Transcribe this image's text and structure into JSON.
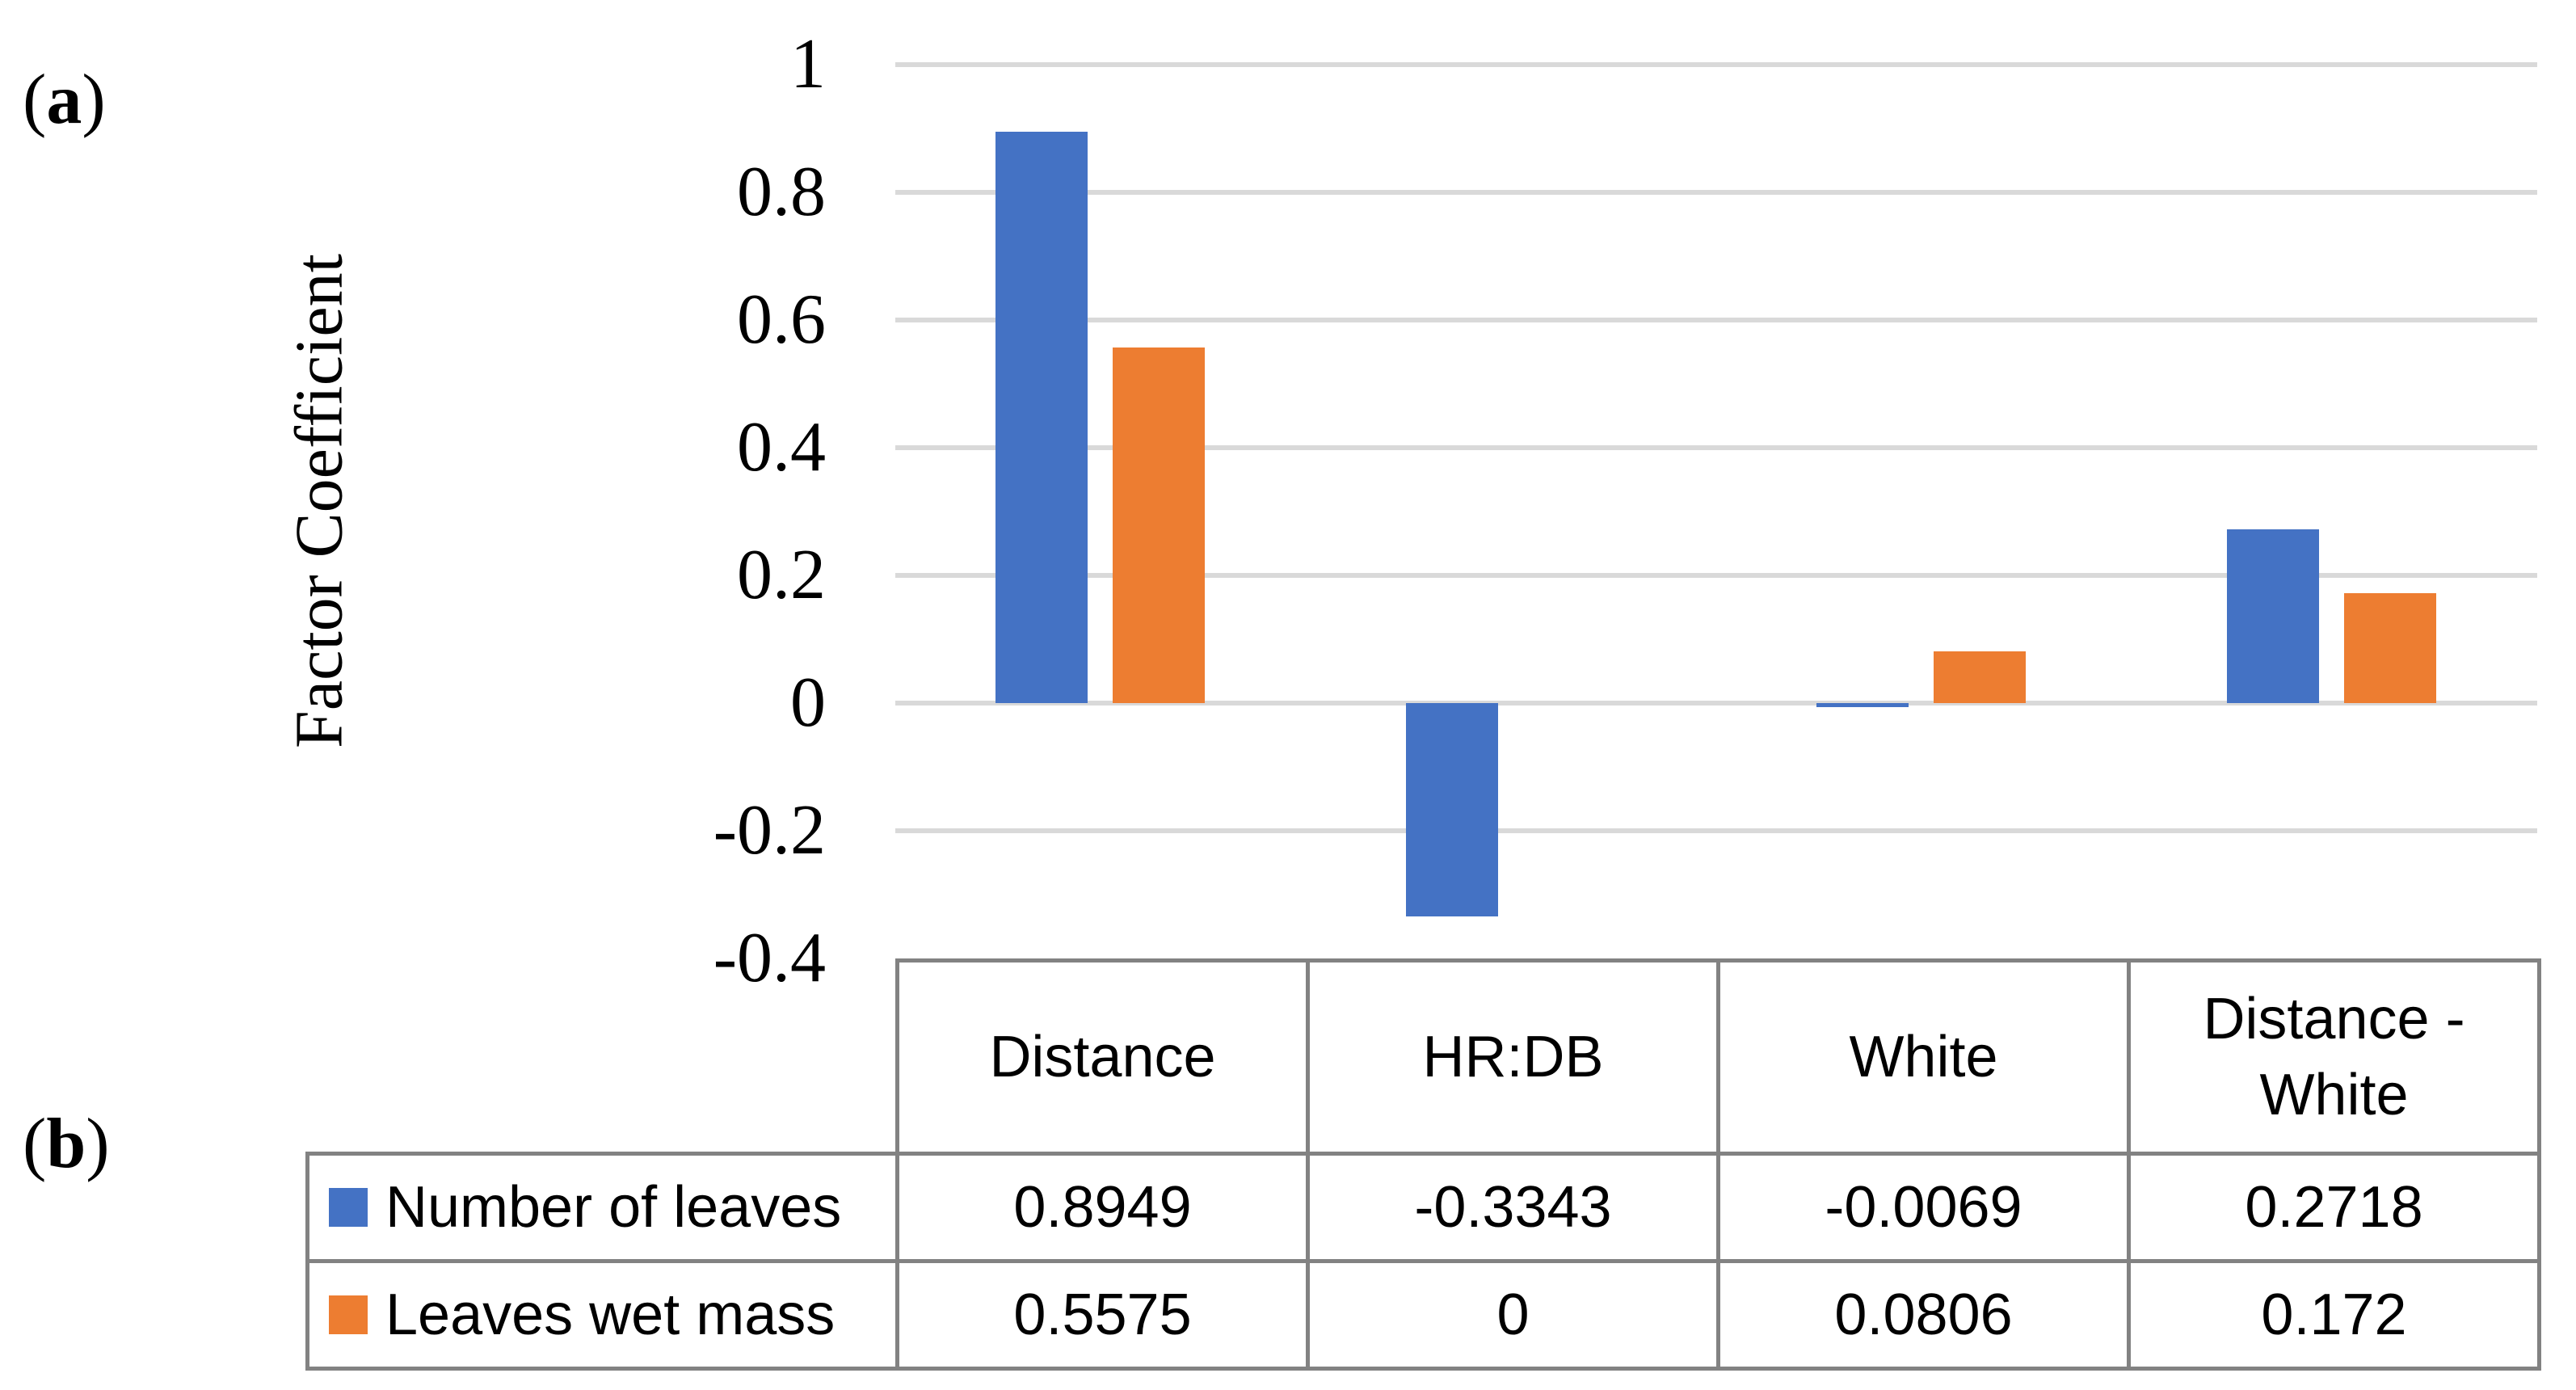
{
  "figure": {
    "panel_a": {
      "open": "(",
      "letter": "a",
      "close": ")"
    },
    "panel_b": {
      "open": "(",
      "letter": "b",
      "close": ")"
    }
  },
  "chart_data": {
    "type": "bar",
    "categories": [
      "Distance",
      "HR:DB",
      "White",
      "Distance - White"
    ],
    "series": [
      {
        "name": "Number of leaves",
        "color": "#4472C4",
        "values": [
          0.8949,
          -0.3343,
          -0.0069,
          0.2718
        ]
      },
      {
        "name": "Leaves wet mass",
        "color": "#ED7D31",
        "values": [
          0.5575,
          0,
          0.0806,
          0.172
        ]
      }
    ],
    "title": "",
    "xlabel": "",
    "ylabel": "Factor Coefficient",
    "ylim": [
      -0.4,
      1
    ],
    "ytick_step": 0.2,
    "yticks": [
      {
        "value": 1,
        "label": "1"
      },
      {
        "value": 0.8,
        "label": "0.8"
      },
      {
        "value": 0.6,
        "label": "0.6"
      },
      {
        "value": 0.4,
        "label": "0.4"
      },
      {
        "value": 0.2,
        "label": "0.2"
      },
      {
        "value": 0,
        "label": "0"
      },
      {
        "value": -0.2,
        "label": "-0.2"
      },
      {
        "value": -0.4,
        "label": "-0.4"
      }
    ],
    "grid": true,
    "legend_position": "table-left"
  },
  "table": {
    "headers": [
      "Distance",
      "HR:DB",
      "White",
      "Distance - White"
    ],
    "rows": [
      {
        "label": "Number of leaves",
        "swatch_color": "#4472C4",
        "values": [
          "0.8949",
          "-0.3343",
          "-0.0069",
          "0.2718"
        ]
      },
      {
        "label": "Leaves wet mass",
        "swatch_color": "#ED7D31",
        "values": [
          "0.5575",
          "0",
          "0.0806",
          "0.172"
        ]
      }
    ]
  },
  "colors": {
    "series_blue": "#4472C4",
    "series_orange": "#ED7D31",
    "gridline": "#D9D9D9",
    "table_border": "#828282"
  }
}
